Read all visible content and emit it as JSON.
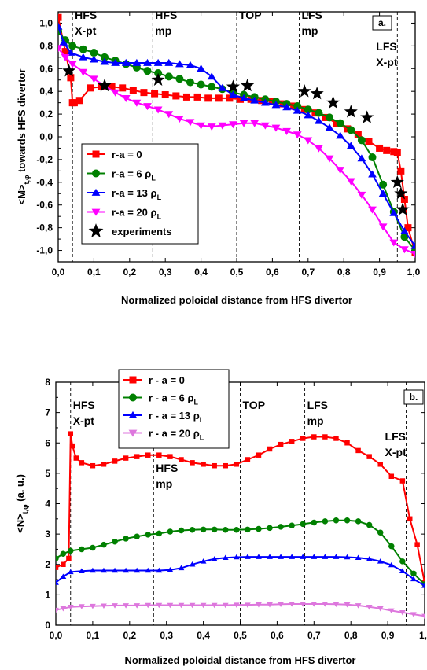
{
  "chart_data": [
    {
      "type": "line",
      "panel_label": "a.",
      "xlabel": "Normalized poloidal distance from HFS divertor",
      "ylabel": "<M>t,φ towards HFS divertor",
      "ylabel_main": "<M>",
      "ylabel_sub": "t,φ",
      "ylabel_rest": "towards HFS divertor",
      "xlim": [
        0.0,
        1.0
      ],
      "ylim": [
        -1.1,
        1.1
      ],
      "xticks": [
        "0,0",
        "0,1",
        "0,2",
        "0,3",
        "0,4",
        "0,5",
        "0,6",
        "0,7",
        "0,8",
        "0,9",
        "1,0"
      ],
      "yticks": [
        "1,0",
        "0,8",
        "0,6",
        "0,4",
        "0,2",
        "0,0",
        "-0,2",
        "-0,4",
        "-0,6",
        "-0,8",
        "-1,0"
      ],
      "xtick_values": [
        0.0,
        0.1,
        0.2,
        0.3,
        0.4,
        0.5,
        0.6,
        0.7,
        0.8,
        0.9,
        1.0
      ],
      "ytick_values": [
        1.0,
        0.8,
        0.6,
        0.4,
        0.2,
        0.0,
        -0.2,
        -0.4,
        -0.6,
        -0.8,
        -1.0
      ],
      "regions": [
        {
          "x": 0.04,
          "lines": [
            "HFS",
            "X-pt"
          ]
        },
        {
          "x": 0.265,
          "lines": [
            "HFS",
            "mp"
          ]
        },
        {
          "x": 0.5,
          "lines": [
            "TOP"
          ]
        },
        {
          "x": 0.675,
          "lines": [
            "LFS",
            "mp"
          ]
        },
        {
          "x": 0.95,
          "lines": [
            "LFS",
            "X-pt"
          ]
        }
      ],
      "legend_position": "bottom-left",
      "legend": [
        {
          "label": "r-a = 0",
          "sub": "",
          "color": "#ff0000",
          "marker": "square"
        },
        {
          "label": "r-a = 6 ρ",
          "sub": "L",
          "color": "#008000",
          "marker": "circle"
        },
        {
          "label": "r-a = 13 ρ",
          "sub": "L",
          "color": "#0000ff",
          "marker": "triangle-up"
        },
        {
          "label": "r-a = 20 ρ",
          "sub": "L",
          "color": "#ff00ff",
          "marker": "triangle-down"
        },
        {
          "label": "experiments",
          "sub": "",
          "color": "#000000",
          "marker": "star"
        }
      ],
      "series": [
        {
          "name": "r-a = 0",
          "color": "#ff0000",
          "marker": "square",
          "x": [
            0.0,
            0.02,
            0.035,
            0.04,
            0.045,
            0.06,
            0.09,
            0.12,
            0.15,
            0.18,
            0.21,
            0.24,
            0.27,
            0.3,
            0.33,
            0.36,
            0.39,
            0.42,
            0.45,
            0.48,
            0.51,
            0.54,
            0.57,
            0.6,
            0.63,
            0.66,
            0.69,
            0.72,
            0.75,
            0.78,
            0.81,
            0.84,
            0.87,
            0.9,
            0.92,
            0.94,
            0.95,
            0.96,
            0.97,
            0.98,
            1.0
          ],
          "y": [
            1.05,
            0.75,
            0.52,
            0.3,
            0.3,
            0.32,
            0.43,
            0.44,
            0.44,
            0.43,
            0.41,
            0.39,
            0.38,
            0.37,
            0.36,
            0.35,
            0.35,
            0.34,
            0.34,
            0.34,
            0.33,
            0.33,
            0.32,
            0.31,
            0.29,
            0.27,
            0.24,
            0.21,
            0.17,
            0.12,
            0.07,
            0.02,
            -0.04,
            -0.1,
            -0.12,
            -0.13,
            -0.14,
            -0.3,
            -0.55,
            -0.8,
            -1.02
          ]
        },
        {
          "name": "r-a = 6 ρL",
          "color": "#008000",
          "marker": "circle",
          "x": [
            0.0,
            0.02,
            0.04,
            0.07,
            0.1,
            0.13,
            0.16,
            0.19,
            0.22,
            0.25,
            0.28,
            0.31,
            0.34,
            0.37,
            0.4,
            0.43,
            0.46,
            0.49,
            0.52,
            0.55,
            0.58,
            0.61,
            0.64,
            0.67,
            0.7,
            0.73,
            0.76,
            0.79,
            0.82,
            0.85,
            0.88,
            0.91,
            0.94,
            0.97,
            1.0
          ],
          "y": [
            0.93,
            0.85,
            0.8,
            0.77,
            0.74,
            0.7,
            0.67,
            0.64,
            0.61,
            0.58,
            0.56,
            0.53,
            0.51,
            0.48,
            0.46,
            0.44,
            0.42,
            0.39,
            0.37,
            0.35,
            0.33,
            0.31,
            0.29,
            0.27,
            0.24,
            0.21,
            0.17,
            0.12,
            0.06,
            -0.03,
            -0.18,
            -0.42,
            -0.66,
            -0.88,
            -1.0
          ]
        },
        {
          "name": "r-a = 13 ρL",
          "color": "#0000ff",
          "marker": "triangle-up",
          "x": [
            0.0,
            0.015,
            0.035,
            0.07,
            0.1,
            0.13,
            0.16,
            0.19,
            0.22,
            0.25,
            0.28,
            0.31,
            0.34,
            0.37,
            0.4,
            0.43,
            0.46,
            0.49,
            0.52,
            0.55,
            0.58,
            0.61,
            0.64,
            0.67,
            0.7,
            0.73,
            0.76,
            0.79,
            0.82,
            0.85,
            0.88,
            0.91,
            0.94,
            0.97,
            1.0
          ],
          "y": [
            0.97,
            0.83,
            0.74,
            0.7,
            0.68,
            0.66,
            0.65,
            0.65,
            0.65,
            0.65,
            0.65,
            0.65,
            0.64,
            0.63,
            0.6,
            0.53,
            0.43,
            0.37,
            0.34,
            0.32,
            0.3,
            0.28,
            0.26,
            0.23,
            0.19,
            0.14,
            0.08,
            0.01,
            -0.08,
            -0.19,
            -0.33,
            -0.5,
            -0.67,
            -0.83,
            -0.96
          ]
        },
        {
          "name": "r-a = 20 ρL",
          "color": "#ff00ff",
          "marker": "triangle-down",
          "x": [
            0.0,
            0.02,
            0.04,
            0.07,
            0.1,
            0.13,
            0.16,
            0.19,
            0.22,
            0.25,
            0.28,
            0.31,
            0.34,
            0.37,
            0.4,
            0.43,
            0.46,
            0.49,
            0.52,
            0.55,
            0.58,
            0.61,
            0.64,
            0.67,
            0.7,
            0.73,
            0.76,
            0.79,
            0.82,
            0.85,
            0.88,
            0.91,
            0.94,
            0.97,
            1.0
          ],
          "y": [
            0.78,
            0.7,
            0.64,
            0.57,
            0.51,
            0.45,
            0.39,
            0.34,
            0.3,
            0.27,
            0.24,
            0.2,
            0.16,
            0.13,
            0.1,
            0.09,
            0.1,
            0.11,
            0.12,
            0.12,
            0.1,
            0.08,
            0.05,
            0.02,
            -0.03,
            -0.1,
            -0.19,
            -0.29,
            -0.39,
            -0.51,
            -0.64,
            -0.79,
            -0.93,
            -0.99,
            -1.03
          ]
        },
        {
          "name": "experiments",
          "color": "#000000",
          "marker": "star",
          "line": false,
          "x": [
            0.03,
            0.13,
            0.28,
            0.49,
            0.53,
            0.69,
            0.725,
            0.77,
            0.82,
            0.865,
            0.95,
            0.96,
            0.965
          ],
          "y": [
            0.58,
            0.45,
            0.5,
            0.44,
            0.45,
            0.4,
            0.38,
            0.3,
            0.22,
            0.17,
            -0.4,
            -0.5,
            -0.64
          ]
        }
      ]
    },
    {
      "type": "line",
      "panel_label": "b.",
      "xlabel": "Normalized poloidal distance from HFS divertor",
      "ylabel": "<N>t,φ (a. u.)",
      "ylabel_main": "<N>",
      "ylabel_sub": "t,φ",
      "ylabel_rest": "(a. u.)",
      "xlim": [
        0.0,
        1.0
      ],
      "ylim": [
        0,
        8
      ],
      "xticks": [
        "0,0",
        "0,1",
        "0,2",
        "0,3",
        "0,4",
        "0,5",
        "0,6",
        "0,7",
        "0,8",
        "0,9",
        "1,"
      ],
      "yticks": [
        "8",
        "7",
        "6",
        "5",
        "4",
        "3",
        "2",
        "1",
        "0"
      ],
      "xtick_values": [
        0.0,
        0.1,
        0.2,
        0.3,
        0.4,
        0.5,
        0.6,
        0.7,
        0.8,
        0.9,
        1.0
      ],
      "ytick_values": [
        8,
        7,
        6,
        5,
        4,
        3,
        2,
        1,
        0
      ],
      "regions": [
        {
          "x": 0.04,
          "lines": [
            "HFS",
            "X-pt"
          ],
          "offset_y": 0
        },
        {
          "x": 0.265,
          "lines": [
            "HFS",
            "mp"
          ],
          "offset_y": 1
        },
        {
          "x": 0.5,
          "lines": [
            "TOP"
          ],
          "offset_y": 0
        },
        {
          "x": 0.675,
          "lines": [
            "LFS",
            "mp"
          ],
          "offset_y": 0
        },
        {
          "x": 0.95,
          "lines": [
            "LFS",
            "X-pt"
          ],
          "offset_y": 0
        }
      ],
      "legend_position": "top-left",
      "legend": [
        {
          "label": "r - a = 0",
          "sub": "",
          "color": "#ff0000",
          "marker": "square"
        },
        {
          "label": "r - a = 6 ρ",
          "sub": "L",
          "color": "#008000",
          "marker": "circle"
        },
        {
          "label": "r - a = 13 ρ",
          "sub": "L",
          "color": "#0000ff",
          "marker": "triangle-up"
        },
        {
          "label": "r - a = 20 ρ",
          "sub": "L",
          "color": "#dd77dd",
          "marker": "triangle-down"
        }
      ],
      "series": [
        {
          "name": "r - a = 0",
          "color": "#ff0000",
          "marker": "square",
          "x": [
            0.0,
            0.02,
            0.035,
            0.04,
            0.045,
            0.055,
            0.07,
            0.1,
            0.13,
            0.16,
            0.19,
            0.22,
            0.25,
            0.28,
            0.31,
            0.34,
            0.37,
            0.4,
            0.43,
            0.46,
            0.49,
            0.52,
            0.55,
            0.58,
            0.61,
            0.64,
            0.67,
            0.7,
            0.73,
            0.76,
            0.79,
            0.82,
            0.85,
            0.88,
            0.91,
            0.94,
            0.96,
            0.98,
            1.0
          ],
          "y": [
            1.9,
            2.0,
            2.2,
            6.3,
            5.9,
            5.5,
            5.35,
            5.25,
            5.3,
            5.4,
            5.5,
            5.55,
            5.6,
            5.6,
            5.55,
            5.45,
            5.35,
            5.3,
            5.25,
            5.25,
            5.3,
            5.45,
            5.6,
            5.8,
            5.95,
            6.05,
            6.15,
            6.2,
            6.2,
            6.15,
            6.0,
            5.75,
            5.55,
            5.3,
            4.9,
            4.75,
            3.5,
            2.65,
            1.4
          ]
        },
        {
          "name": "r - a = 6 ρL",
          "color": "#008000",
          "marker": "circle",
          "x": [
            0.0,
            0.02,
            0.04,
            0.07,
            0.1,
            0.13,
            0.16,
            0.19,
            0.22,
            0.25,
            0.28,
            0.31,
            0.34,
            0.37,
            0.4,
            0.43,
            0.46,
            0.49,
            0.52,
            0.55,
            0.58,
            0.61,
            0.64,
            0.67,
            0.7,
            0.73,
            0.76,
            0.79,
            0.82,
            0.85,
            0.88,
            0.91,
            0.94,
            0.97,
            1.0
          ],
          "y": [
            2.2,
            2.35,
            2.45,
            2.5,
            2.55,
            2.65,
            2.75,
            2.85,
            2.92,
            2.98,
            3.02,
            3.08,
            3.12,
            3.14,
            3.15,
            3.15,
            3.14,
            3.14,
            3.15,
            3.17,
            3.2,
            3.24,
            3.28,
            3.33,
            3.38,
            3.42,
            3.45,
            3.45,
            3.42,
            3.3,
            3.05,
            2.6,
            2.1,
            1.7,
            1.35
          ]
        },
        {
          "name": "r - a = 13 ρL",
          "color": "#0000ff",
          "marker": "triangle-up",
          "x": [
            0.0,
            0.02,
            0.04,
            0.07,
            0.1,
            0.13,
            0.16,
            0.19,
            0.22,
            0.25,
            0.28,
            0.31,
            0.34,
            0.37,
            0.4,
            0.43,
            0.46,
            0.49,
            0.52,
            0.55,
            0.58,
            0.61,
            0.64,
            0.67,
            0.7,
            0.73,
            0.76,
            0.79,
            0.82,
            0.85,
            0.88,
            0.91,
            0.94,
            0.97,
            1.0
          ],
          "y": [
            1.4,
            1.6,
            1.75,
            1.78,
            1.8,
            1.8,
            1.8,
            1.8,
            1.8,
            1.8,
            1.8,
            1.82,
            1.88,
            2.0,
            2.1,
            2.18,
            2.22,
            2.24,
            2.25,
            2.25,
            2.25,
            2.25,
            2.25,
            2.25,
            2.25,
            2.25,
            2.25,
            2.24,
            2.22,
            2.18,
            2.1,
            1.98,
            1.78,
            1.52,
            1.3
          ]
        },
        {
          "name": "r - a = 20 ρL",
          "color": "#dd77dd",
          "marker": "triangle-down",
          "x": [
            0.0,
            0.02,
            0.04,
            0.07,
            0.1,
            0.13,
            0.16,
            0.19,
            0.22,
            0.25,
            0.28,
            0.31,
            0.34,
            0.37,
            0.4,
            0.43,
            0.46,
            0.49,
            0.52,
            0.55,
            0.58,
            0.61,
            0.64,
            0.67,
            0.7,
            0.73,
            0.76,
            0.79,
            0.82,
            0.85,
            0.88,
            0.91,
            0.94,
            0.97,
            1.0
          ],
          "y": [
            0.5,
            0.55,
            0.6,
            0.62,
            0.63,
            0.64,
            0.65,
            0.65,
            0.65,
            0.66,
            0.66,
            0.66,
            0.66,
            0.66,
            0.66,
            0.66,
            0.66,
            0.67,
            0.67,
            0.68,
            0.68,
            0.69,
            0.7,
            0.7,
            0.7,
            0.7,
            0.69,
            0.68,
            0.65,
            0.6,
            0.55,
            0.48,
            0.42,
            0.36,
            0.3
          ]
        }
      ]
    }
  ]
}
